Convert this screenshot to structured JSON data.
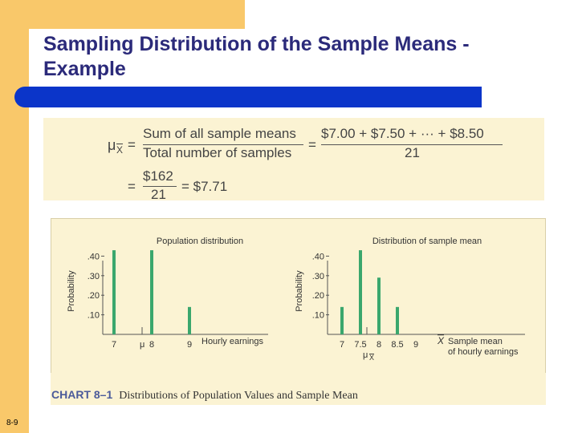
{
  "slide": {
    "title_line1": "Sampling Distribution of the Sample Means -",
    "title_line2": "Example",
    "slide_number": "8-9"
  },
  "formula": {
    "lhs_symbol": "μ",
    "lhs_sub": "X",
    "eq": "=",
    "frac1_num": "Sum of all sample means",
    "frac1_den": "Total number of samples",
    "frac2_num": "$7.00 + $7.50 + ··· + $8.50",
    "frac2_den": "21",
    "frac3_num": "$162",
    "frac3_den": "21",
    "result": "= $7.71"
  },
  "caption": {
    "label": "CHART 8–1",
    "text": "Distributions of Population Values and Sample Mean"
  },
  "chart_data": [
    {
      "type": "bar",
      "title": "Population distribution",
      "xlabel": "Hourly earnings",
      "ylabel": "Probability",
      "x_ticks": [
        "7",
        "8",
        "9"
      ],
      "y_ticks": [
        ".40",
        ".30",
        ".20",
        ".10"
      ],
      "ylim": [
        0,
        0.5
      ],
      "mu_label": "μ",
      "x": [
        7,
        8,
        9
      ],
      "values": [
        0.43,
        0.43,
        0.14
      ],
      "color": "#3aa76d"
    },
    {
      "type": "bar",
      "title": "Distribution of sample mean",
      "xlabel_line1": "Sample mean",
      "xlabel_line2": "of hourly earnings",
      "ylabel": "Probability",
      "x_ticks": [
        "7",
        "7.5",
        "8",
        "8.5",
        "9"
      ],
      "y_ticks": [
        ".40",
        ".30",
        ".20",
        ".10"
      ],
      "ylim": [
        0,
        0.5
      ],
      "xbar_symbol": "X",
      "mu_label": "μ",
      "mu_sub": "X",
      "x": [
        7,
        7.5,
        8,
        8.5
      ],
      "values": [
        0.14,
        0.43,
        0.29,
        0.14
      ],
      "color": "#3aa76d"
    }
  ]
}
